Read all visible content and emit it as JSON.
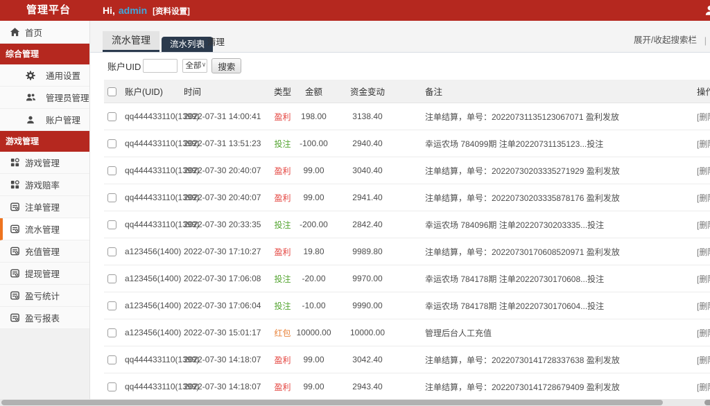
{
  "topbar": {
    "brand": "管理平台",
    "greeting_prefix": "Hi,",
    "username": "admin",
    "profile_settings": "[资料设置]"
  },
  "sidebar": {
    "items": [
      {
        "type": "item",
        "label": "首页",
        "icon": "home",
        "indent": 1,
        "active": false
      },
      {
        "type": "section",
        "label": "综合管理"
      },
      {
        "type": "item",
        "label": "通用设置",
        "icon": "gear",
        "indent": 2,
        "active": false
      },
      {
        "type": "item",
        "label": "管理员管理",
        "icon": "users",
        "indent": 2,
        "active": false
      },
      {
        "type": "item",
        "label": "账户管理",
        "icon": "user",
        "indent": 2,
        "active": false
      },
      {
        "type": "section",
        "label": "游戏管理"
      },
      {
        "type": "item",
        "label": "游戏管理",
        "icon": "grid",
        "indent": 1,
        "active": false
      },
      {
        "type": "item",
        "label": "游戏赔率",
        "icon": "grid",
        "indent": 1,
        "active": false
      },
      {
        "type": "item",
        "label": "注单管理",
        "icon": "list",
        "indent": 1,
        "active": false
      },
      {
        "type": "item",
        "label": "流水管理",
        "icon": "list",
        "indent": 1,
        "active": true
      },
      {
        "type": "item",
        "label": "充值管理",
        "icon": "list",
        "indent": 1,
        "active": false
      },
      {
        "type": "item",
        "label": "提现管理",
        "icon": "list",
        "indent": 1,
        "active": false
      },
      {
        "type": "item",
        "label": "盈亏统计",
        "icon": "list",
        "indent": 1,
        "active": false
      },
      {
        "type": "item",
        "label": "盈亏报表",
        "icon": "list",
        "indent": 1,
        "active": false
      }
    ]
  },
  "content": {
    "page_tab": "流水管理",
    "tabs": [
      {
        "label": "流水列表",
        "active": true
      },
      {
        "label": "清理",
        "active": false
      }
    ],
    "tab_divider": "|",
    "search_toggle": "展开/收起搜索栏",
    "search_toggle_divider": "|",
    "search": {
      "uid_label": "账户UID",
      "uid_value": "",
      "type_selected": "全部",
      "caret": "∨",
      "search_button": "搜索"
    },
    "table": {
      "headers": {
        "account": "账户(UID)",
        "time": "时间",
        "type": "类型",
        "amount": "金额",
        "change": "资金变动",
        "remark": "备注",
        "action": "操作"
      },
      "row_action": "[删除]",
      "rows": [
        {
          "account": "qq444433110(1399)",
          "time": "2022-07-31 14:00:41",
          "type": "盈利",
          "type_color": "red",
          "amount": "198.00",
          "change": "3138.40",
          "remark": "注单结算，单号：20220731135123067071 盈利发放"
        },
        {
          "account": "qq444433110(1399)",
          "time": "2022-07-31 13:51:23",
          "type": "投注",
          "type_color": "green",
          "amount": "-100.00",
          "change": "2940.40",
          "remark": "幸运农场 784099期 注单20220731135123...投注"
        },
        {
          "account": "qq444433110(1399)",
          "time": "2022-07-30 20:40:07",
          "type": "盈利",
          "type_color": "red",
          "amount": "99.00",
          "change": "3040.40",
          "remark": "注单结算，单号：20220730203335271929 盈利发放"
        },
        {
          "account": "qq444433110(1399)",
          "time": "2022-07-30 20:40:07",
          "type": "盈利",
          "type_color": "red",
          "amount": "99.00",
          "change": "2941.40",
          "remark": "注单结算，单号：20220730203335878176 盈利发放"
        },
        {
          "account": "qq444433110(1399)",
          "time": "2022-07-30 20:33:35",
          "type": "投注",
          "type_color": "green",
          "amount": "-200.00",
          "change": "2842.40",
          "remark": "幸运农场 784096期 注单20220730203335...投注"
        },
        {
          "account": "a123456(1400)",
          "time": "2022-07-30 17:10:27",
          "type": "盈利",
          "type_color": "red",
          "amount": "19.80",
          "change": "9989.80",
          "remark": "注单结算，单号：20220730170608520971 盈利发放"
        },
        {
          "account": "a123456(1400)",
          "time": "2022-07-30 17:06:08",
          "type": "投注",
          "type_color": "green",
          "amount": "-20.00",
          "change": "9970.00",
          "remark": "幸运农场 784178期 注单20220730170608...投注"
        },
        {
          "account": "a123456(1400)",
          "time": "2022-07-30 17:06:04",
          "type": "投注",
          "type_color": "green",
          "amount": "-10.00",
          "change": "9990.00",
          "remark": "幸运农场 784178期 注单20220730170604...投注"
        },
        {
          "account": "a123456(1400)",
          "time": "2022-07-30 15:01:17",
          "type": "红包",
          "type_color": "orange",
          "amount": "10000.00",
          "change": "10000.00",
          "remark": "管理后台人工充值"
        },
        {
          "account": "qq444433110(1399)",
          "time": "2022-07-30 14:18:07",
          "type": "盈利",
          "type_color": "red",
          "amount": "99.00",
          "change": "3042.40",
          "remark": "注单结算，单号：20220730141728337638 盈利发放"
        },
        {
          "account": "qq444433110(1399)",
          "time": "2022-07-30 14:18:07",
          "type": "盈利",
          "type_color": "red",
          "amount": "99.00",
          "change": "2943.40",
          "remark": "注单结算，单号：20220730141728679409 盈利发放"
        }
      ]
    }
  },
  "colors": {
    "topbar_red": "#b5281f",
    "accent_orange": "#ee7420",
    "tab_navy": "#2b3a4d",
    "username_blue": "#3fa8dc",
    "type_red": "#e4433e",
    "type_green": "#55a532",
    "type_orange": "#e8833a"
  }
}
